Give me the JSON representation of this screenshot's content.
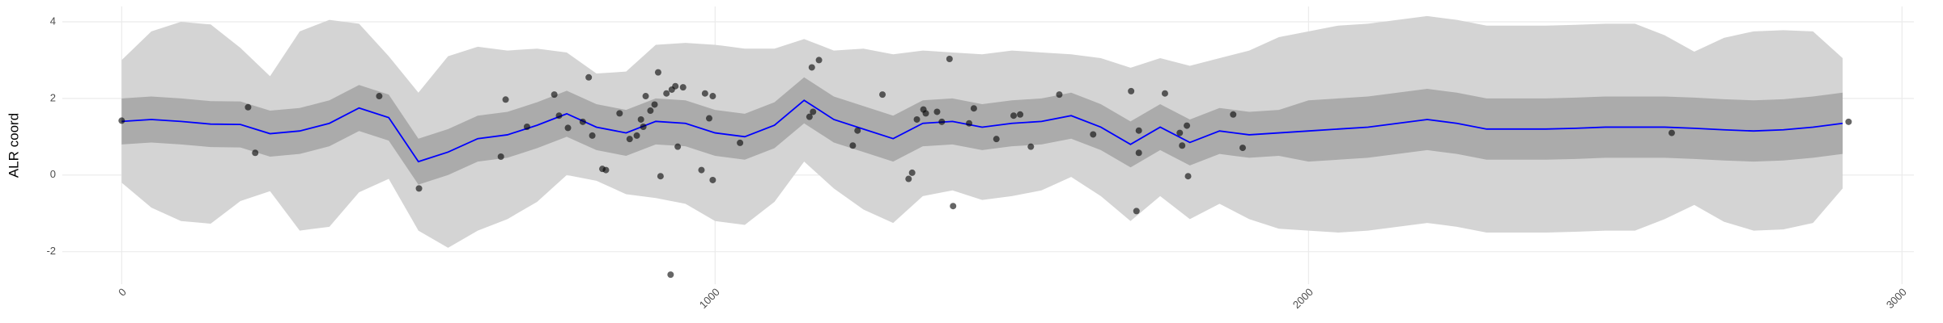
{
  "chart_data": {
    "type": "line",
    "y_label": "ALR coord",
    "xlim": [
      -100,
      3020
    ],
    "ylim": [
      -2.85,
      4.4
    ],
    "xticks": [
      0,
      1000,
      2000,
      3000
    ],
    "yticks": [
      -2,
      0,
      2,
      4
    ],
    "grid": true,
    "x": [
      0,
      50,
      100,
      150,
      200,
      250,
      300,
      350,
      400,
      450,
      500,
      550,
      600,
      650,
      700,
      750,
      800,
      850,
      900,
      950,
      1000,
      1050,
      1100,
      1150,
      1200,
      1250,
      1300,
      1350,
      1400,
      1450,
      1500,
      1550,
      1600,
      1650,
      1700,
      1750,
      1800,
      1850,
      1900,
      1950,
      2000,
      2050,
      2100,
      2150,
      2200,
      2250,
      2300,
      2350,
      2400,
      2450,
      2500,
      2550,
      2600,
      2650,
      2700,
      2750,
      2800,
      2850,
      2900
    ],
    "bands": [
      {
        "color": "#d4d4d4",
        "lower": [
          -0.2,
          -0.85,
          -1.2,
          -1.27,
          -0.68,
          -0.42,
          -1.45,
          -1.35,
          -0.45,
          -0.1,
          -1.45,
          -1.9,
          -1.45,
          -1.15,
          -0.7,
          0.0,
          -0.15,
          -0.5,
          -0.6,
          -0.75,
          -1.2,
          -1.3,
          -0.7,
          0.35,
          -0.35,
          -0.9,
          -1.25,
          -0.55,
          -0.4,
          -0.65,
          -0.55,
          -0.4,
          -0.05,
          -0.55,
          -1.2,
          -0.55,
          -1.15,
          -0.75,
          -1.15,
          -1.4,
          -1.45,
          -1.5,
          -1.45,
          -1.35,
          -1.25,
          -1.35,
          -1.5,
          -1.5,
          -1.5,
          -1.48,
          -1.45,
          -1.45,
          -1.15,
          -0.78,
          -1.22,
          -1.45,
          -1.42,
          -1.25,
          -0.35
        ],
        "upper": [
          3.0,
          3.75,
          4.0,
          3.93,
          3.32,
          2.58,
          3.75,
          4.05,
          3.95,
          3.1,
          2.15,
          3.1,
          3.35,
          3.25,
          3.3,
          3.2,
          2.65,
          2.7,
          3.4,
          3.45,
          3.4,
          3.3,
          3.3,
          3.55,
          3.25,
          3.3,
          3.15,
          3.25,
          3.2,
          3.15,
          3.25,
          3.2,
          3.15,
          3.05,
          2.8,
          3.05,
          2.85,
          3.05,
          3.25,
          3.6,
          3.75,
          3.9,
          3.95,
          4.05,
          4.15,
          4.05,
          3.9,
          3.9,
          3.9,
          3.92,
          3.95,
          3.95,
          3.65,
          3.22,
          3.58,
          3.75,
          3.78,
          3.75,
          3.05
        ]
      },
      {
        "color": "#ababab",
        "lower": [
          0.8,
          0.85,
          0.8,
          0.73,
          0.72,
          0.48,
          0.55,
          0.75,
          1.15,
          0.9,
          -0.25,
          0.0,
          0.35,
          0.45,
          0.7,
          1.0,
          0.65,
          0.5,
          0.8,
          0.75,
          0.5,
          0.4,
          0.7,
          1.35,
          0.85,
          0.6,
          0.35,
          0.75,
          0.8,
          0.65,
          0.75,
          0.8,
          0.95,
          0.65,
          0.2,
          0.65,
          0.25,
          0.55,
          0.45,
          0.5,
          0.35,
          0.4,
          0.45,
          0.55,
          0.65,
          0.55,
          0.4,
          0.4,
          0.4,
          0.42,
          0.45,
          0.45,
          0.45,
          0.42,
          0.38,
          0.35,
          0.38,
          0.45,
          0.55
        ],
        "upper": [
          2.0,
          2.05,
          2.0,
          1.93,
          1.92,
          1.68,
          1.75,
          1.95,
          2.35,
          2.1,
          0.95,
          1.2,
          1.55,
          1.65,
          1.9,
          2.2,
          1.85,
          1.7,
          2.0,
          1.95,
          1.7,
          1.6,
          1.9,
          2.55,
          2.05,
          1.8,
          1.55,
          1.95,
          2.0,
          1.85,
          1.95,
          2.0,
          2.15,
          1.85,
          1.4,
          1.85,
          1.45,
          1.75,
          1.65,
          1.7,
          1.95,
          2.0,
          2.05,
          2.15,
          2.25,
          2.15,
          2.0,
          2.0,
          2.0,
          2.02,
          2.05,
          2.05,
          2.05,
          2.02,
          1.98,
          1.95,
          1.98,
          2.05,
          2.15
        ]
      }
    ],
    "series": [
      {
        "color": "#0000ff",
        "values": [
          1.4,
          1.45,
          1.4,
          1.33,
          1.32,
          1.08,
          1.15,
          1.35,
          1.75,
          1.5,
          0.35,
          0.6,
          0.95,
          1.05,
          1.3,
          1.6,
          1.25,
          1.1,
          1.4,
          1.35,
          1.1,
          1.0,
          1.3,
          1.95,
          1.45,
          1.2,
          0.95,
          1.35,
          1.4,
          1.25,
          1.35,
          1.4,
          1.55,
          1.25,
          0.8,
          1.25,
          0.85,
          1.15,
          1.05,
          1.1,
          1.15,
          1.2,
          1.25,
          1.35,
          1.45,
          1.35,
          1.2,
          1.2,
          1.2,
          1.22,
          1.25,
          1.25,
          1.25,
          1.22,
          1.18,
          1.15,
          1.18,
          1.25,
          1.35
        ]
      }
    ],
    "points": {
      "color": "#000000",
      "opacity": 0.6,
      "x": [
        0,
        213,
        225,
        434,
        501,
        639,
        647,
        683,
        729,
        737,
        752,
        777,
        787,
        793,
        810,
        816,
        839,
        856,
        868,
        875,
        879,
        883,
        891,
        898,
        904,
        908,
        918,
        925,
        927,
        933,
        937,
        946,
        977,
        983,
        990,
        996,
        996,
        1042,
        1159,
        1163,
        1165,
        1175,
        1232,
        1240,
        1282,
        1326,
        1332,
        1340,
        1351,
        1355,
        1374,
        1382,
        1395,
        1401,
        1428,
        1436,
        1474,
        1503,
        1514,
        1532,
        1580,
        1637,
        1701,
        1710,
        1714,
        1714,
        1758,
        1783,
        1787,
        1795,
        1797,
        1873,
        1889,
        2612,
        2910
      ],
      "values": [
        1.42,
        1.77,
        0.58,
        2.06,
        -0.35,
        0.48,
        1.97,
        1.26,
        2.1,
        1.55,
        1.23,
        1.39,
        2.55,
        1.03,
        0.16,
        0.13,
        1.61,
        0.94,
        1.03,
        1.45,
        1.26,
        2.06,
        1.68,
        1.84,
        2.68,
        -0.03,
        2.13,
        -2.6,
        2.23,
        2.32,
        0.74,
        2.29,
        0.13,
        2.13,
        1.48,
        2.06,
        -0.13,
        0.84,
        1.52,
        2.81,
        1.65,
        3.0,
        0.77,
        1.16,
        2.1,
        -0.1,
        0.06,
        1.45,
        1.71,
        1.61,
        1.65,
        1.39,
        3.03,
        -0.81,
        1.35,
        1.74,
        0.94,
        1.55,
        1.58,
        0.74,
        2.1,
        1.06,
        2.19,
        -0.94,
        1.16,
        0.58,
        2.13,
        1.1,
        0.77,
        1.29,
        -0.03,
        1.58,
        0.71,
        1.1,
        1.39
      ]
    }
  }
}
